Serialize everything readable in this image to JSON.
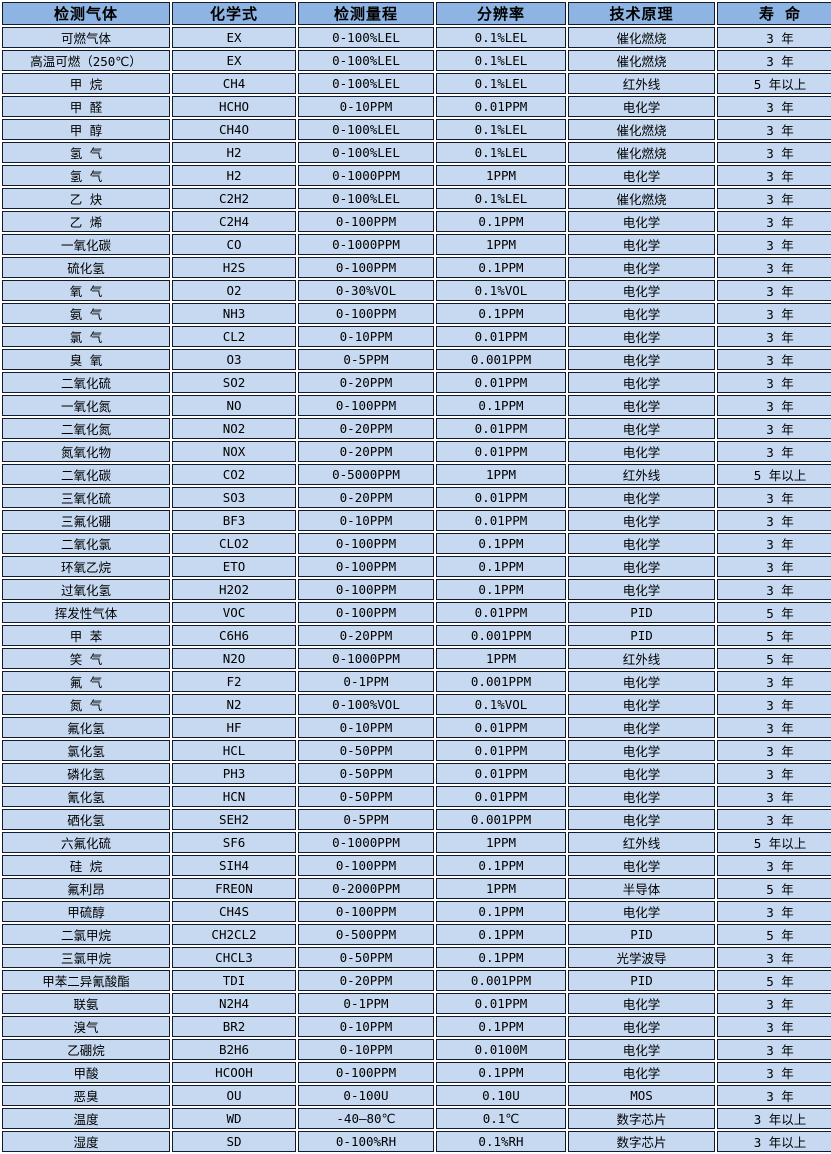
{
  "colors": {
    "header_bg": "#8db4e2",
    "row_bg": "#c6d9f1",
    "border": "#121c2e",
    "gap": "#ffffff",
    "text": "#000000"
  },
  "table": {
    "columns": [
      {
        "label": "检测气体"
      },
      {
        "label": "化学式"
      },
      {
        "label": "检测量程"
      },
      {
        "label": "分辨率"
      },
      {
        "label": "技术原理"
      },
      {
        "label": "寿 命"
      }
    ],
    "rows": [
      [
        "可燃气体",
        "EX",
        "0-100%LEL",
        "0.1%LEL",
        "催化燃烧",
        "3 年"
      ],
      [
        "高温可燃（250℃）",
        "EX",
        "0-100%LEL",
        "0.1%LEL",
        "催化燃烧",
        "3 年"
      ],
      [
        "甲 烷",
        "CH4",
        "0-100%LEL",
        "0.1%LEL",
        "红外线",
        "5 年以上"
      ],
      [
        "甲 醛",
        "HCHO",
        "0-10PPM",
        "0.01PPM",
        "电化学",
        "3 年"
      ],
      [
        "甲 醇",
        "CH4O",
        "0-100%LEL",
        "0.1%LEL",
        "催化燃烧",
        "3 年"
      ],
      [
        "氢 气",
        "H2",
        "0-100%LEL",
        "0.1%LEL",
        "催化燃烧",
        "3 年"
      ],
      [
        "氢 气",
        "H2",
        "0-1000PPM",
        "1PPM",
        "电化学",
        "3 年"
      ],
      [
        "乙 炔",
        "C2H2",
        "0-100%LEL",
        "0.1%LEL",
        "催化燃烧",
        "3 年"
      ],
      [
        "乙 烯",
        "C2H4",
        "0-100PPM",
        "0.1PPM",
        "电化学",
        "3 年"
      ],
      [
        "一氧化碳",
        "CO",
        "0-1000PPM",
        "1PPM",
        "电化学",
        "3 年"
      ],
      [
        "硫化氢",
        "H2S",
        "0-100PPM",
        "0.1PPM",
        "电化学",
        "3 年"
      ],
      [
        "氧 气",
        "O2",
        "0-30%VOL",
        "0.1%VOL",
        "电化学",
        "3 年"
      ],
      [
        "氨 气",
        "NH3",
        "0-100PPM",
        "0.1PPM",
        "电化学",
        "3 年"
      ],
      [
        "氯 气",
        "CL2",
        "0-10PPM",
        "0.01PPM",
        "电化学",
        "3 年"
      ],
      [
        "臭 氧",
        "O3",
        "0-5PPM",
        "0.001PPM",
        "电化学",
        "3 年"
      ],
      [
        "二氧化硫",
        "SO2",
        "0-20PPM",
        "0.01PPM",
        "电化学",
        "3 年"
      ],
      [
        "一氧化氮",
        "NO",
        "0-100PPM",
        "0.1PPM",
        "电化学",
        "3 年"
      ],
      [
        "二氧化氮",
        "NO2",
        "0-20PPM",
        "0.01PPM",
        "电化学",
        "3 年"
      ],
      [
        "氮氧化物",
        "NOX",
        "0-20PPM",
        "0.01PPM",
        "电化学",
        "3 年"
      ],
      [
        "二氧化碳",
        "CO2",
        "0-5000PPM",
        "1PPM",
        "红外线",
        "5 年以上"
      ],
      [
        "三氧化硫",
        "SO3",
        "0-20PPM",
        "0.01PPM",
        "电化学",
        "3 年"
      ],
      [
        "三氟化硼",
        "BF3",
        "0-10PPM",
        "0.01PPM",
        "电化学",
        "3 年"
      ],
      [
        "二氧化氯",
        "CLO2",
        "0-100PPM",
        "0.1PPM",
        "电化学",
        "3 年"
      ],
      [
        "环氧乙烷",
        "ETO",
        "0-100PPM",
        "0.1PPM",
        "电化学",
        "3 年"
      ],
      [
        "过氧化氢",
        "H2O2",
        "0-100PPM",
        "0.1PPM",
        "电化学",
        "3 年"
      ],
      [
        "挥发性气体",
        "VOC",
        "0-100PPM",
        "0.01PPM",
        "PID",
        "5 年"
      ],
      [
        "甲 苯",
        "C6H6",
        "0-20PPM",
        "0.001PPM",
        "PID",
        "5 年"
      ],
      [
        "笑 气",
        "N2O",
        "0-1000PPM",
        "1PPM",
        "红外线",
        "5 年"
      ],
      [
        "氟 气",
        "F2",
        "0-1PPM",
        "0.001PPM",
        "电化学",
        "3 年"
      ],
      [
        "氮 气",
        "N2",
        "0-100%VOL",
        "0.1%VOL",
        "电化学",
        "3 年"
      ],
      [
        "氟化氢",
        "HF",
        "0-10PPM",
        "0.01PPM",
        "电化学",
        "3 年"
      ],
      [
        "氯化氢",
        "HCL",
        "0-50PPM",
        "0.01PPM",
        "电化学",
        "3 年"
      ],
      [
        "磷化氢",
        "PH3",
        "0-50PPM",
        "0.01PPM",
        "电化学",
        "3 年"
      ],
      [
        "氰化氢",
        "HCN",
        "0-50PPM",
        "0.01PPM",
        "电化学",
        "3 年"
      ],
      [
        "硒化氢",
        "SEH2",
        "0-5PPM",
        "0.001PPM",
        "电化学",
        "3 年"
      ],
      [
        "六氟化硫",
        "SF6",
        "0-1000PPM",
        "1PPM",
        "红外线",
        "5 年以上"
      ],
      [
        "硅 烷",
        "SIH4",
        "0-100PPM",
        "0.1PPM",
        "电化学",
        "3 年"
      ],
      [
        "氟利昂",
        "FREON",
        "0-2000PPM",
        "1PPM",
        "半导体",
        "5 年"
      ],
      [
        "甲硫醇",
        "CH4S",
        "0-100PPM",
        "0.1PPM",
        "电化学",
        "3 年"
      ],
      [
        "二氯甲烷",
        "CH2CL2",
        "0-500PPM",
        "0.1PPM",
        "PID",
        "5 年"
      ],
      [
        "三氯甲烷",
        "CHCL3",
        "0-50PPM",
        "0.1PPM",
        "光学波导",
        "3 年"
      ],
      [
        "甲苯二异氰酸酯",
        "TDI",
        "0-20PPM",
        "0.001PPM",
        "PID",
        "5 年"
      ],
      [
        "联氨",
        "N2H4",
        "0-1PPM",
        "0.01PPM",
        "电化学",
        "3 年"
      ],
      [
        "溴气",
        "BR2",
        "0-10PPM",
        "0.1PPM",
        "电化学",
        "3 年"
      ],
      [
        "乙硼烷",
        "B2H6",
        "0-10PPM",
        "0.0100M",
        "电化学",
        "3 年"
      ],
      [
        "甲酸",
        "HCOOH",
        "0-100PPM",
        "0.1PPM",
        "电化学",
        "3 年"
      ],
      [
        "恶臭",
        "OU",
        "0-100U",
        "0.10U",
        "MOS",
        "3 年"
      ],
      [
        "温度",
        "WD",
        "-40—80℃",
        "0.1℃",
        "数字芯片",
        "3 年以上"
      ],
      [
        "湿度",
        "SD",
        "0-100%RH",
        "0.1%RH",
        "数字芯片",
        "3 年以上"
      ]
    ]
  }
}
